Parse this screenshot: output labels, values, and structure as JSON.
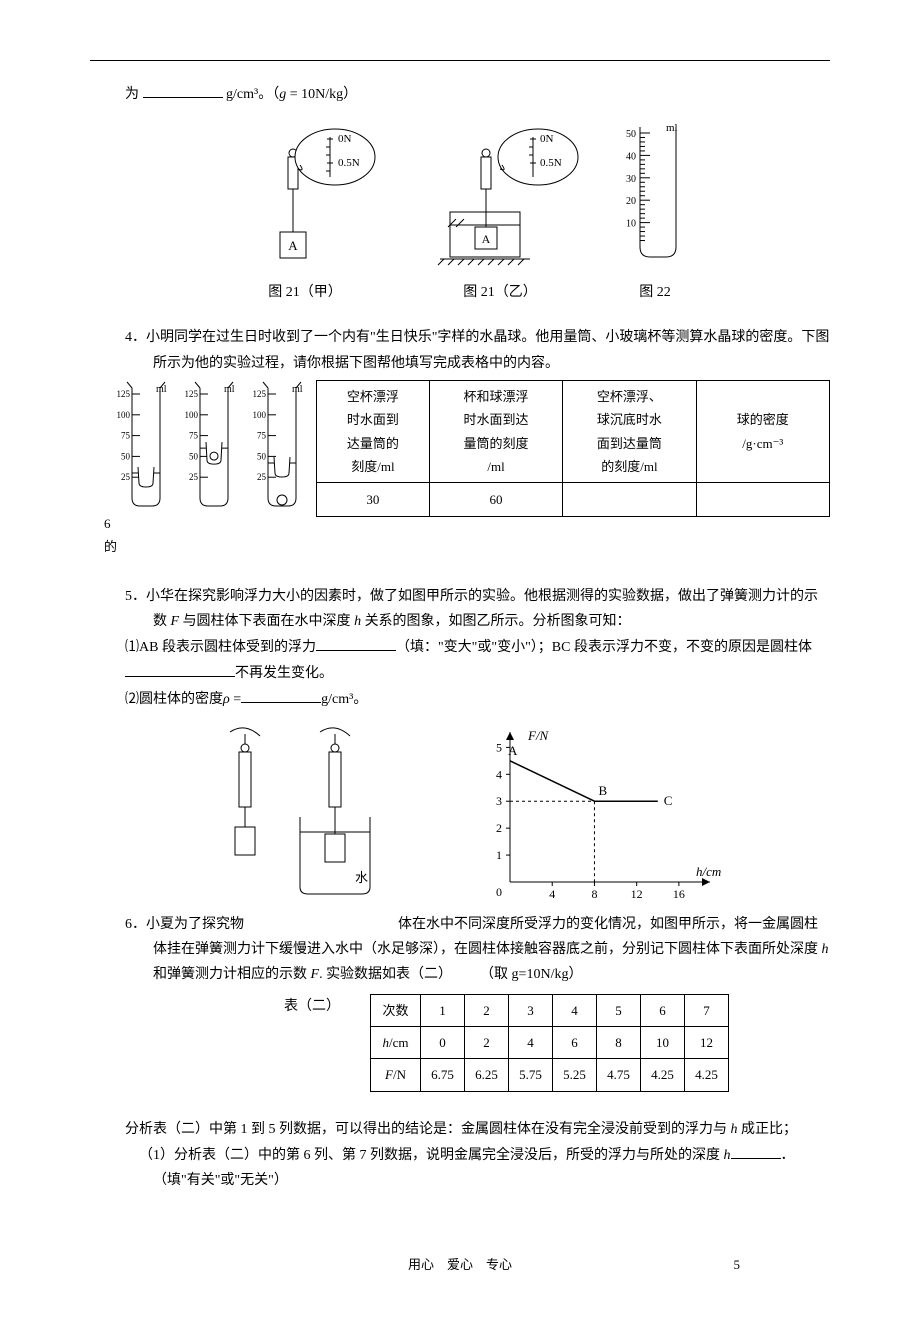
{
  "colors": {
    "text": "#000000",
    "bg": "#ffffff",
    "line": "#000000",
    "water": "#d0e8f5"
  },
  "q3": {
    "line": "为",
    "unit_after_blank": "g/cm³。（",
    "g_expr": "g",
    "g_val": " = 10N/kg）",
    "fig_left_caption": "图 21（甲）",
    "fig_mid_caption": "图 21（乙）",
    "fig_right_caption": "图 22",
    "cylinder_label": "ml",
    "cylinder_ticks": [
      10,
      20,
      30,
      40,
      50
    ],
    "spring_label_top": "0N",
    "spring_label_mid": "0.5N",
    "block_label": "A"
  },
  "q4": {
    "num": "4．",
    "text1": "小明同学在过生日时收到了一个内有\"生日快乐\"字样的水晶球。他用量筒、小玻璃杯等测算水晶球的密度。下图所示为他的实验过程，请你根据下图帮他填写完成表格中的内容。",
    "sidenum": "6",
    "sidechar": "的",
    "cyl_scale_label": "ml",
    "cyl_ticks": [
      25,
      50,
      75,
      100,
      125
    ],
    "table": {
      "headers": [
        "空杯漂浮\n时水面到\n达量筒的\n刻度/ml",
        "杯和球漂浮\n时水面到达\n量筒的刻度\n/ml",
        "空杯漂浮、\n球沉底时水\n面到达量筒\n的刻度/ml",
        "球的密度\n/g·cm⁻³"
      ],
      "row": [
        "30",
        "60",
        "",
        ""
      ]
    }
  },
  "q5": {
    "num": "5．",
    "text1": "小华在探究影响浮力大小的因素时，做了如图甲所示的实验。他根据测得的实验数据，做出了弹簧测力计的示数 ",
    "text1_F": "F",
    "text1b": " 与圆柱体下表面在水中深度 ",
    "text1_h": "h",
    "text1c": " 关系的图象，如图乙所示。分析图象可知：",
    "sub1_pre": "⑴AB 段表示圆柱体受到的浮力",
    "sub1_mid": "（填：\"变大\"或\"变小\"）；BC 段表示浮力不变，不变的原因是圆柱体",
    "sub1_post": "不再发生变化。",
    "sub2_pre": "⑵圆柱体的密度",
    "sub2_rho": "ρ",
    "sub2_eq": " =",
    "sub2_unit": "g/cm³。",
    "water_label": "水",
    "graph": {
      "ylabel": "F/N",
      "xlabel": "h/cm",
      "y_ticks": [
        1,
        2,
        3,
        4,
        5
      ],
      "x_ticks": [
        4,
        8,
        12,
        16
      ],
      "points": {
        "A": {
          "x": 0,
          "y": 4.5,
          "label": "A"
        },
        "B": {
          "x": 8,
          "y": 3,
          "label": "B"
        },
        "C": {
          "x": 14,
          "y": 3,
          "label": "C"
        }
      },
      "y_max": 5.2,
      "x_max": 18,
      "axis_color": "#000000",
      "line_color": "#000000"
    }
  },
  "q6": {
    "num": "6．",
    "text_a": "小夏为了探究物",
    "text_b": "体在水中不同深度所受浮力的变化情况，如图甲所示，将一金属圆柱体挂在弹簧测力计下缓慢进入水中（水足够深），在圆柱体接触容器底之前，分别记下圆柱体下表面所处深度 ",
    "text_h": "h",
    "text_c": " 和弹簧测力计相应的示数 ",
    "text_F": "F",
    "text_d": ". 实验数据如表（二）　　　（取 g=10N/kg）",
    "table_caption": "表（二）",
    "table": {
      "rows": [
        [
          "次数",
          "1",
          "2",
          "3",
          "4",
          "5",
          "6",
          "7"
        ],
        [
          "h/cm",
          "0",
          "2",
          "4",
          "6",
          "8",
          "10",
          "12"
        ],
        [
          "F/N",
          "6.75",
          "6.25",
          "5.75",
          "5.25",
          "4.75",
          "4.25",
          "4.25"
        ]
      ],
      "h_label_italic": "h",
      "h_label_rest": "/cm",
      "F_label_italic": "F",
      "F_label_rest": "/N"
    },
    "concl_pre": "分析表（二）中第 1 到 5 列数据，可以得出的结论是：金属圆柱体在没有完全浸没前受到的浮力与 ",
    "concl_h": "h",
    "concl_post": " 成正比；",
    "sub1_pre": "（1）分析表（二）中的第 6 列、第 7 列数据，说明金属完全浸没后，所受的浮力与所处的深度 ",
    "sub1_h": "h",
    "sub1_post": "．（填\"有关\"或\"无关\"）"
  },
  "footer": {
    "motto": "用心　爱心　专心",
    "page": "5"
  }
}
